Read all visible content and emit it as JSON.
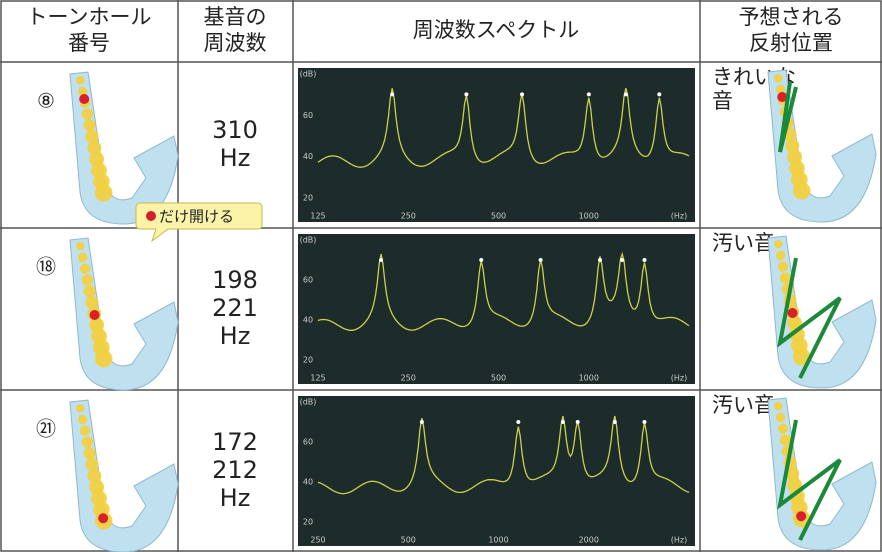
{
  "header": [
    [
      "トーンホール",
      "番号"
    ],
    [
      "基音の",
      "周波数"
    ],
    [
      "周波数スペクトル"
    ],
    [
      "予想される",
      "反射位置"
    ]
  ],
  "callout": "だけ開ける",
  "rows": [
    {
      "hole": "⑧",
      "freq": [
        "310",
        "Hz"
      ],
      "note": [
        "きれいな",
        "音"
      ],
      "spectrum": {
        "xticks": [
          "125",
          "250",
          "500",
          "1000",
          "(Hz)"
        ],
        "yticks": [
          "(dB)",
          "60",
          "40",
          "20"
        ]
      }
    },
    {
      "hole": "⑱",
      "freq": [
        "198",
        "221",
        "Hz"
      ],
      "note": [
        "汚い音"
      ],
      "spectrum": {
        "xticks": [
          "125",
          "250",
          "500",
          "1000",
          "(Hz)"
        ],
        "yticks": [
          "(dB)",
          "60",
          "40",
          "20"
        ]
      }
    },
    {
      "hole": "㉑",
      "freq": [
        "172",
        "212",
        "Hz"
      ],
      "note": [
        "汚い音"
      ],
      "spectrum": {
        "xticks": [
          "250",
          "500",
          "1000",
          "2000",
          "(Hz)"
        ],
        "yticks": [
          "(dB)",
          "60",
          "40",
          "20"
        ]
      }
    }
  ]
}
